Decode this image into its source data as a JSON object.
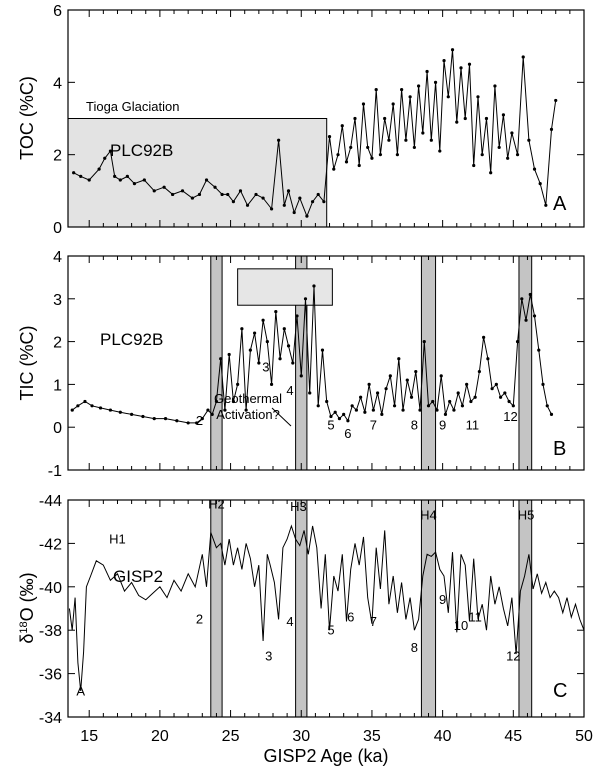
{
  "chart_data": [
    {
      "panel": "A",
      "type": "line",
      "series_name": "PLC92B",
      "ylabel": "TOC (%C)",
      "ylim": [
        6,
        0
      ],
      "yticks": [
        0,
        2,
        4,
        6
      ],
      "xlim": [
        13.5,
        50
      ],
      "markers": true,
      "shaded": [
        {
          "label": "Tioga Glaciation",
          "x": [
            13.5,
            31.8
          ],
          "y": [
            0,
            3.0
          ],
          "color": "#e3e3e3"
        }
      ],
      "x": [
        13.9,
        14.4,
        15.0,
        15.7,
        16.1,
        16.5,
        16.8,
        17.2,
        17.7,
        18.2,
        18.9,
        19.6,
        20.3,
        20.9,
        21.6,
        22.3,
        22.8,
        23.3,
        23.9,
        24.4,
        24.8,
        25.2,
        25.7,
        26.2,
        26.8,
        27.3,
        27.9,
        28.4,
        28.8,
        29.1,
        29.5,
        29.9,
        30.4,
        30.8,
        31.2,
        31.6,
        32.0,
        32.3,
        32.6,
        32.9,
        33.2,
        33.5,
        33.8,
        34.1,
        34.4,
        34.7,
        35.0,
        35.3,
        35.6,
        35.9,
        36.2,
        36.5,
        36.8,
        37.1,
        37.4,
        37.7,
        38.0,
        38.3,
        38.6,
        38.9,
        39.2,
        39.5,
        39.8,
        40.1,
        40.4,
        40.7,
        41.0,
        41.3,
        41.6,
        41.9,
        42.2,
        42.5,
        42.8,
        43.1,
        43.4,
        43.7,
        44.0,
        44.3,
        44.6,
        44.9,
        45.3,
        45.7,
        46.1,
        46.5,
        46.9,
        47.3,
        47.7,
        48.0
      ],
      "y": [
        1.5,
        1.4,
        1.3,
        1.6,
        1.9,
        2.1,
        1.4,
        1.3,
        1.4,
        1.2,
        1.3,
        1.0,
        1.1,
        0.9,
        1.0,
        0.8,
        0.9,
        1.3,
        1.1,
        0.9,
        0.9,
        0.7,
        1.0,
        0.6,
        0.9,
        0.8,
        0.5,
        2.4,
        0.6,
        1.0,
        0.4,
        0.8,
        0.3,
        0.7,
        0.9,
        0.7,
        2.5,
        1.6,
        2.0,
        2.8,
        1.8,
        2.2,
        3.0,
        1.7,
        3.4,
        2.2,
        1.9,
        3.8,
        2.0,
        3.0,
        2.4,
        3.4,
        2.0,
        3.8,
        2.4,
        3.6,
        2.2,
        3.9,
        2.6,
        4.3,
        2.4,
        4.0,
        2.1,
        4.6,
        3.6,
        4.9,
        2.9,
        4.4,
        3.0,
        4.5,
        1.7,
        3.6,
        2.0,
        3.0,
        1.5,
        3.9,
        2.2,
        3.1,
        1.9,
        2.6,
        2.0,
        4.7,
        2.4,
        1.6,
        1.2,
        0.6,
        2.7,
        3.5
      ]
    },
    {
      "panel": "B",
      "type": "line",
      "series_name": "PLC92B",
      "ylabel": "TIC (%C)",
      "ylim": [
        4,
        -1
      ],
      "yticks": [
        -1,
        0,
        1,
        2,
        3,
        4
      ],
      "xlim": [
        13.5,
        50
      ],
      "markers": true,
      "shaded": [
        {
          "label": "Geothermal Activation?",
          "x": [
            25.5,
            32.2
          ],
          "y": [
            2.85,
            3.7
          ],
          "color": "#e6e6e6"
        }
      ],
      "x": [
        13.8,
        14.2,
        14.7,
        15.2,
        15.8,
        16.5,
        17.2,
        18.0,
        18.8,
        19.6,
        20.4,
        21.2,
        22.0,
        22.6,
        23.0,
        23.4,
        23.7,
        24.0,
        24.3,
        24.6,
        24.9,
        25.2,
        25.5,
        25.8,
        26.1,
        26.4,
        26.7,
        27.0,
        27.3,
        27.6,
        27.9,
        28.2,
        28.5,
        28.8,
        29.1,
        29.4,
        29.7,
        30.0,
        30.3,
        30.6,
        30.9,
        31.2,
        31.5,
        31.8,
        32.1,
        32.4,
        32.7,
        33.0,
        33.3,
        33.6,
        33.9,
        34.2,
        34.5,
        34.8,
        35.1,
        35.4,
        35.7,
        36.0,
        36.3,
        36.6,
        36.9,
        37.2,
        37.5,
        37.8,
        38.1,
        38.4,
        38.7,
        39.0,
        39.3,
        39.6,
        39.9,
        40.2,
        40.5,
        40.8,
        41.1,
        41.4,
        41.7,
        42.0,
        42.3,
        42.6,
        42.9,
        43.2,
        43.5,
        43.8,
        44.1,
        44.4,
        44.7,
        45.0,
        45.3,
        45.6,
        45.9,
        46.2,
        46.5,
        46.8,
        47.1,
        47.4,
        47.7
      ],
      "y": [
        0.4,
        0.5,
        0.6,
        0.5,
        0.45,
        0.4,
        0.35,
        0.3,
        0.25,
        0.2,
        0.2,
        0.15,
        0.1,
        0.1,
        0.2,
        0.4,
        0.3,
        0.6,
        1.6,
        0.4,
        1.7,
        0.6,
        1.0,
        2.3,
        0.4,
        1.8,
        2.2,
        1.5,
        2.5,
        2.0,
        1.0,
        2.7,
        1.6,
        2.3,
        1.9,
        1.5,
        2.6,
        1.2,
        3.0,
        0.8,
        3.3,
        0.5,
        1.8,
        0.6,
        0.25,
        0.35,
        0.2,
        0.3,
        0.15,
        0.5,
        0.4,
        0.7,
        0.35,
        1.0,
        0.4,
        0.8,
        0.3,
        0.9,
        1.2,
        0.5,
        1.6,
        0.4,
        1.1,
        0.7,
        1.3,
        0.4,
        2.0,
        0.5,
        0.6,
        0.4,
        1.2,
        0.3,
        0.6,
        0.4,
        0.8,
        0.5,
        1.0,
        0.6,
        0.7,
        1.3,
        2.1,
        1.6,
        0.9,
        1.0,
        0.7,
        0.8,
        0.6,
        0.5,
        2.0,
        3.0,
        2.5,
        3.1,
        2.6,
        1.8,
        1.0,
        0.5,
        0.3
      ]
    },
    {
      "panel": "C",
      "type": "line",
      "series_name": "GISP2",
      "ylabel": "δ18O (‰)",
      "xlabel": "GISP2 Age (ka)",
      "ylim": [
        -44,
        -34
      ],
      "yticks": [
        -44,
        -42,
        -40,
        -38,
        -36,
        -34
      ],
      "xlim": [
        13.5,
        50
      ],
      "xticks": [
        15,
        20,
        25,
        30,
        35,
        40,
        45,
        50
      ],
      "markers": false,
      "x": [
        13.6,
        13.8,
        14.0,
        14.2,
        14.4,
        14.6,
        14.8,
        15.1,
        15.5,
        16.0,
        16.5,
        17.0,
        17.5,
        18.0,
        18.5,
        19.0,
        19.5,
        20.0,
        20.5,
        21.0,
        21.5,
        22.0,
        22.5,
        23.0,
        23.3,
        23.6,
        24.0,
        24.3,
        24.6,
        24.9,
        25.2,
        25.5,
        25.8,
        26.1,
        26.4,
        26.7,
        27.0,
        27.3,
        27.6,
        27.8,
        28.1,
        28.4,
        28.7,
        29.0,
        29.3,
        29.6,
        29.9,
        30.2,
        30.5,
        30.8,
        31.1,
        31.4,
        31.7,
        32.0,
        32.3,
        32.6,
        32.9,
        33.2,
        33.5,
        33.8,
        34.1,
        34.4,
        34.7,
        35.0,
        35.3,
        35.6,
        35.9,
        36.2,
        36.5,
        36.8,
        37.1,
        37.4,
        37.7,
        38.0,
        38.3,
        38.6,
        38.9,
        39.2,
        39.5,
        39.8,
        40.1,
        40.4,
        40.7,
        41.0,
        41.3,
        41.6,
        41.9,
        42.2,
        42.5,
        42.8,
        43.1,
        43.4,
        43.7,
        44.0,
        44.3,
        44.6,
        44.9,
        45.2,
        45.5,
        45.8,
        46.1,
        46.4,
        46.7,
        47.0,
        47.3,
        47.6,
        47.9,
        48.2,
        48.5,
        48.8,
        49.1,
        49.4,
        49.7,
        50.0
      ],
      "y": [
        -39.0,
        -38.0,
        -39.5,
        -36.5,
        -35.2,
        -37.0,
        -40.0,
        -40.5,
        -41.2,
        -41.0,
        -40.3,
        -40.6,
        -39.8,
        -40.2,
        -39.6,
        -39.4,
        -39.7,
        -40.0,
        -39.5,
        -40.3,
        -39.8,
        -40.6,
        -40.0,
        -41.5,
        -40.0,
        -42.5,
        -41.8,
        -42.0,
        -41.0,
        -42.2,
        -41.0,
        -41.8,
        -40.8,
        -42.0,
        -41.3,
        -40.0,
        -41.0,
        -37.5,
        -41.5,
        -41.0,
        -40.2,
        -38.5,
        -41.8,
        -42.2,
        -42.8,
        -42.2,
        -41.9,
        -42.6,
        -41.5,
        -42.8,
        -41.8,
        -39.0,
        -41.5,
        -38.0,
        -40.5,
        -39.8,
        -41.5,
        -38.4,
        -40.8,
        -42.0,
        -41.0,
        -42.3,
        -39.5,
        -38.3,
        -41.8,
        -39.9,
        -42.6,
        -39.2,
        -40.5,
        -38.8,
        -40.2,
        -38.5,
        -39.5,
        -38.0,
        -38.5,
        -40.5,
        -41.5,
        -41.4,
        -41.6,
        -40.8,
        -40.5,
        -38.8,
        -41.6,
        -37.9,
        -41.5,
        -41.0,
        -38.4,
        -41.3,
        -38.5,
        -39.2,
        -38.0,
        -40.5,
        -39.2,
        -40.0,
        -39.0,
        -38.2,
        -39.5,
        -36.9,
        -39.8,
        -40.5,
        -41.5,
        -39.9,
        -40.6,
        -39.7,
        -40.2,
        -39.5,
        -39.8,
        -39.5,
        -38.8,
        -39.5,
        -38.6,
        -39.2,
        -38.5,
        -38.0
      ]
    }
  ],
  "heinrich_bands": [
    {
      "label": "H2",
      "x": [
        23.6,
        24.4
      ]
    },
    {
      "label": "H3",
      "x": [
        29.6,
        30.4
      ]
    },
    {
      "label": "H4",
      "x": [
        38.5,
        39.5
      ]
    },
    {
      "label": "H5",
      "x": [
        45.4,
        46.3
      ]
    }
  ],
  "labels": {
    "tioga": "Tioga Glaciation",
    "site_a": "PLC92B",
    "site_b": "PLC92B",
    "site_c": "GISP2",
    "geothermal_line1": "Geothermal",
    "geothermal_line2": "Activation?",
    "panel_a": "A",
    "panel_b": "B",
    "panel_c": "C",
    "ylabel_a": "TOC (%C)",
    "ylabel_b": "TIC (%C)",
    "ylabel_c_prefix": "δ",
    "ylabel_c_sup": "18",
    "ylabel_c_suffix": "O (‰)",
    "xlabel": "GISP2 Age (ka)"
  },
  "interstadial_labels_b": [
    {
      "text": "2",
      "x": 22.8,
      "y": 0.05
    },
    {
      "text": "3",
      "x": 27.5,
      "y": 1.3
    },
    {
      "text": "4",
      "x": 29.2,
      "y": 0.75
    },
    {
      "text": "5",
      "x": 32.1,
      "y": -0.05
    },
    {
      "text": "6",
      "x": 33.3,
      "y": -0.25
    },
    {
      "text": "7",
      "x": 35.1,
      "y": -0.05
    },
    {
      "text": "8",
      "x": 38.0,
      "y": -0.05
    },
    {
      "text": "9",
      "x": 40.0,
      "y": -0.05
    },
    {
      "text": "11",
      "x": 42.1,
      "y": -0.05
    },
    {
      "text": "12",
      "x": 44.8,
      "y": 0.15
    }
  ],
  "interstadial_labels_c": [
    {
      "text": "A",
      "x": 14.4,
      "y": -35.0
    },
    {
      "text": "2",
      "x": 22.8,
      "y": -38.3
    },
    {
      "text": "3",
      "x": 27.7,
      "y": -36.6
    },
    {
      "text": "4",
      "x": 29.2,
      "y": -38.2
    },
    {
      "text": "5",
      "x": 32.1,
      "y": -37.8
    },
    {
      "text": "6",
      "x": 33.5,
      "y": -38.4
    },
    {
      "text": "7",
      "x": 35.1,
      "y": -38.2
    },
    {
      "text": "8",
      "x": 38.0,
      "y": -37.0
    },
    {
      "text": "9",
      "x": 40.0,
      "y": -39.2
    },
    {
      "text": "10",
      "x": 41.3,
      "y": -38.0
    },
    {
      "text": "11",
      "x": 42.3,
      "y": -38.4
    },
    {
      "text": "12",
      "x": 45.0,
      "y": -36.6
    },
    {
      "text": "H1",
      "x": 17.0,
      "y": -42.0
    },
    {
      "text": "H2",
      "x": 24.0,
      "y": -43.6
    },
    {
      "text": "H3",
      "x": 29.8,
      "y": -43.5
    },
    {
      "text": "H4",
      "x": 39.0,
      "y": -43.1
    },
    {
      "text": "H5",
      "x": 45.9,
      "y": -43.1
    }
  ]
}
